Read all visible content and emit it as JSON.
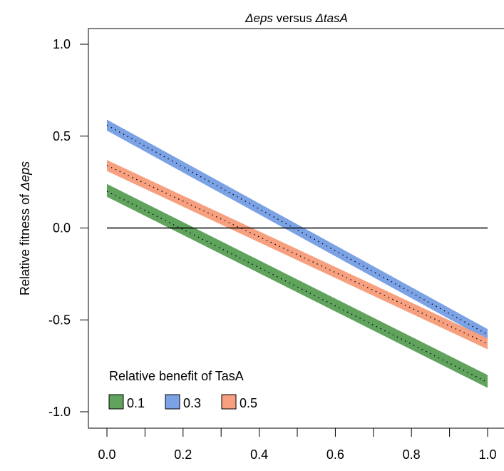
{
  "chart_data": {
    "type": "line",
    "title_parts": [
      {
        "text": "Δeps",
        "italic": true
      },
      {
        "text": " versus ",
        "italic": false
      },
      {
        "text": "ΔtasA",
        "italic": true
      }
    ],
    "ylabel_parts": [
      {
        "text": "Relative fitness of  ",
        "italic": false
      },
      {
        "text": "Δeps",
        "italic": true
      }
    ],
    "xlabel": "",
    "xlim": [
      0.0,
      1.0
    ],
    "ylim": [
      -1.0,
      1.0
    ],
    "x_ticks": [
      0.0,
      0.1,
      0.2,
      0.3,
      0.4,
      0.5,
      0.6,
      0.7,
      0.8,
      0.9,
      1.0
    ],
    "x_tick_labels": [
      "0.0",
      "0.2",
      "0.4",
      "0.6",
      "0.8",
      "1.0"
    ],
    "x_tick_label_values": [
      0.0,
      0.2,
      0.4,
      0.6,
      0.8,
      1.0
    ],
    "y_tick_labels": [
      "-1.0",
      "-0.5",
      "0.0",
      "0.5",
      "1.0"
    ],
    "y_tick_values": [
      -1.0,
      -0.5,
      0.0,
      0.5,
      1.0
    ],
    "reference_line": {
      "y": 0.0,
      "x_range": [
        0.0,
        1.0
      ],
      "color": "#000000"
    },
    "legend": {
      "title": "Relative benefit of TasA",
      "placement": "bottom-left",
      "items": [
        "0.1",
        "0.3",
        "0.5"
      ]
    },
    "series": [
      {
        "name": "0.1",
        "color": "#5fa35d",
        "x": [
          0.0,
          1.0
        ],
        "y_mid": [
          0.2,
          -0.84
        ],
        "y_low": [
          0.17,
          -0.87
        ],
        "y_high": [
          0.24,
          -0.8
        ]
      },
      {
        "name": "0.3",
        "color": "#7ca2e6",
        "x": [
          0.0,
          1.0
        ],
        "y_mid": [
          0.56,
          -0.58
        ],
        "y_low": [
          0.53,
          -0.61
        ],
        "y_high": [
          0.59,
          -0.55
        ]
      },
      {
        "name": "0.5",
        "color": "#f7a07f",
        "x": [
          0.0,
          1.0
        ],
        "y_mid": [
          0.34,
          -0.63
        ],
        "y_low": [
          0.31,
          -0.66
        ],
        "y_high": [
          0.37,
          -0.6
        ]
      }
    ]
  }
}
